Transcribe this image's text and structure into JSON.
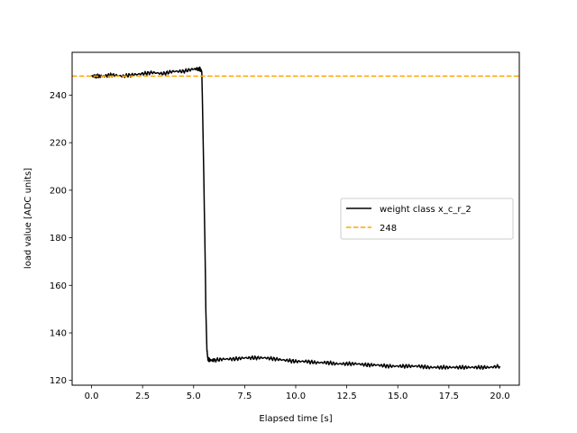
{
  "chart_data": {
    "type": "line",
    "title": "",
    "xlabel": "Elapsed time [s]",
    "ylabel": "load value [ADC units]",
    "xlim": [
      -0.95,
      20.95
    ],
    "ylim": [
      118,
      258
    ],
    "xticks": [
      0.0,
      2.5,
      5.0,
      7.5,
      10.0,
      12.5,
      15.0,
      17.5,
      20.0
    ],
    "xtick_labels": [
      "0.0",
      "2.5",
      "5.0",
      "7.5",
      "10.0",
      "12.5",
      "15.0",
      "17.5",
      "20.0"
    ],
    "yticks": [
      120,
      140,
      160,
      180,
      200,
      220,
      240
    ],
    "ytick_labels": [
      "120",
      "140",
      "160",
      "180",
      "200",
      "220",
      "240"
    ],
    "grid": false,
    "legend_position": "center-right",
    "series": [
      {
        "name": "weight class x_c_r_2",
        "color": "#000000",
        "style": "solid",
        "x": [
          0.0,
          0.3,
          0.6,
          1.0,
          1.5,
          2.0,
          2.5,
          3.0,
          3.5,
          4.0,
          4.5,
          5.0,
          5.3,
          5.4,
          5.45,
          5.5,
          5.55,
          5.6,
          5.65,
          5.7,
          5.8,
          6.0,
          6.5,
          7.0,
          7.5,
          8.0,
          8.5,
          9.0,
          9.5,
          10.0,
          10.5,
          11.0,
          11.5,
          12.0,
          12.5,
          13.0,
          13.5,
          14.0,
          14.5,
          15.0,
          15.5,
          16.0,
          16.5,
          17.0,
          17.5,
          18.0,
          18.5,
          19.0,
          19.5,
          20.0
        ],
        "y": [
          248,
          248,
          248,
          248.5,
          248,
          248.5,
          249,
          249.5,
          249,
          250,
          250,
          251,
          251,
          250,
          230,
          205,
          180,
          150,
          133,
          129,
          128.5,
          128.5,
          129,
          129,
          129.5,
          129.5,
          129.5,
          129,
          128.5,
          128,
          128,
          127.5,
          127.5,
          127,
          127,
          127,
          126.5,
          126.5,
          126,
          126,
          126,
          126,
          125.5,
          125.5,
          125.5,
          125.5,
          125.5,
          125.5,
          125.5,
          126
        ]
      },
      {
        "name": "248",
        "color": "#ffa500",
        "style": "dashed",
        "constant_y": 248
      }
    ]
  }
}
